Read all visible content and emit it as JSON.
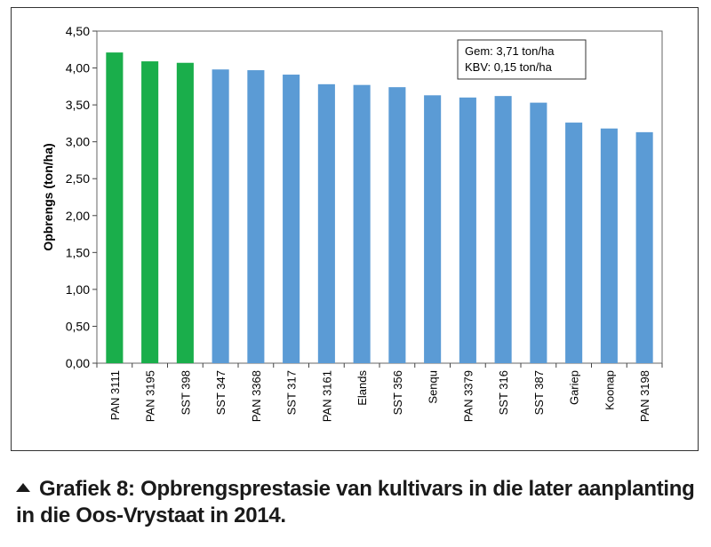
{
  "chart_data": {
    "type": "bar",
    "ylabel": "Opbrengs (ton/ha)",
    "xlabel": "",
    "ylim": [
      0,
      4.5
    ],
    "yticks": [
      "0,00",
      "0,50",
      "1,00",
      "1,50",
      "2,00",
      "2,50",
      "3,00",
      "3,50",
      "4,00",
      "4,50"
    ],
    "categories": [
      "PAN 3111",
      "PAN 3195",
      "SST 398",
      "SST 347",
      "PAN 3368",
      "SST 317",
      "PAN 3161",
      "Elands",
      "SST 356",
      "Senqu",
      "PAN 3379",
      "SST 316",
      "SST 387",
      "Gariep",
      "Koonap",
      "PAN 3198"
    ],
    "values": [
      4.21,
      4.09,
      4.07,
      3.98,
      3.97,
      3.91,
      3.78,
      3.77,
      3.74,
      3.63,
      3.6,
      3.62,
      3.53,
      3.26,
      3.18,
      3.13
    ],
    "highlight_count": 3,
    "colors": {
      "highlight": "#1aae4b",
      "default": "#5b9bd5"
    },
    "grid": false,
    "annotation": {
      "lines": [
        "Gem: 3,71 ton/ha",
        "KBV: 0,15 ton/ha"
      ],
      "position": "top-right"
    }
  },
  "caption": "Grafiek 8: Opbrengsprestasie van kultivars in die later aanplanting in die Oos-Vrystaat in 2014."
}
